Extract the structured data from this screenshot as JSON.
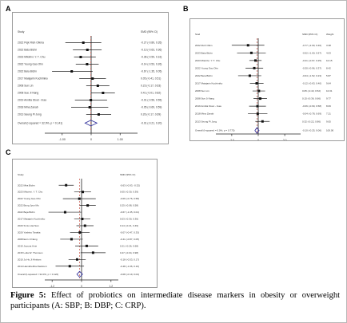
{
  "caption": {
    "label": "Figure 5:",
    "text": "Effect of probiotics on intermediate disease markers in obesity or overweight participants (A: SBP; B: DBP; C: CRP)."
  },
  "colors": {
    "diamond": "#3a3aa0",
    "square": "#111111",
    "line": "#222222",
    "frame": "#9c9c9c"
  },
  "panels": [
    {
      "label": "A",
      "header": {
        "study": "Study",
        "effect": "SMD (95% CI)"
      },
      "chart_data": {
        "type": "forest",
        "studies": [
          {
            "name": "2022 Pejk Rioh Olkma",
            "est": -0.27,
            "lo": -0.89,
            "hi": 0.35,
            "ci": "-0.27 (-0.89, 0.35)"
          },
          {
            "name": "2022 Bata Bichn",
            "est": -0.13,
            "lo": -0.63,
            "hi": 0.36,
            "ci": "-0.13 (-0.63, 0.36)"
          },
          {
            "name": "2023 Mtiotrivi. Y. T. Chu",
            "est": -0.36,
            "lo": -0.59,
            "hi": 0.16,
            "ci": "-0.36 (-0.59, 0.16)"
          },
          {
            "name": "2022 Yuung Gao Ohn",
            "est": -0.14,
            "lo": -0.53,
            "hi": 0.26,
            "ci": "-0.14 (-0.53, 0.26)"
          },
          {
            "name": "2022 Beia Bichn",
            "est": -0.67,
            "lo": -1.35,
            "hi": 0.05,
            "ci": "-0.67 (-1.35, 0.05)"
          },
          {
            "name": "2017 Maiajarin Kuchimiko",
            "est": 0.05,
            "lo": -0.41,
            "hi": 0.51,
            "ci": "0.05 (-0.41, 0.51)"
          },
          {
            "name": "2008 Sun Lin",
            "est": 0.23,
            "lo": -0.17,
            "hi": 0.63,
            "ci": "0.23 (-0.17, 0.63)"
          },
          {
            "name": "2008 Sue Ji Nang",
            "est": 0.41,
            "lo": -0.01,
            "hi": 0.82,
            "ci": "0.41 (-0.01, 0.82)"
          },
          {
            "name": "2019 Annilia Stout - Inaa",
            "est": -0.01,
            "lo": -0.56,
            "hi": 0.55,
            "ci": "-0.01 (-0.56, 0.55)"
          },
          {
            "name": "2018 Mina Zanab",
            "est": -0.05,
            "lo": -0.69,
            "hi": 0.59,
            "ci": "-0.05 (-0.69, 0.59)"
          },
          {
            "name": "2013 Seung Pi Jong",
            "est": 0.26,
            "lo": -0.17,
            "hi": 0.69,
            "ci": "0.26 (-0.17, 0.69)"
          }
        ],
        "overall": {
          "label": "Overall (I-squared = 32.9%, p = 0.141)",
          "est": -0.01,
          "lo": -0.21,
          "hi": 0.2,
          "ci": "-0.01 (-0.21, 0.20)"
        },
        "xlim": [
          -1.6,
          1.6
        ],
        "ticks": [
          {
            "v": -1.0,
            "t": "-1.00"
          },
          {
            "v": 0,
            "t": "0"
          },
          {
            "v": 1.0,
            "t": "1.00"
          }
        ]
      }
    },
    {
      "label": "B",
      "header": {
        "study": "Stud",
        "effect": "SMD (95% CI)",
        "weight": "Weight"
      },
      "chart_data": {
        "type": "forest",
        "studies": [
          {
            "name": "2022 Rioh Olkm",
            "est": -0.77,
            "lo": -2.0,
            "hi": 0.46,
            "ci": "-0.77 (-2.00, 0.46)",
            "w": "3.38"
          },
          {
            "name": "2023 Bata Bichn",
            "est": -0.52,
            "lo": -1.6,
            "hi": 0.57,
            "ci": "-0.52 (-1.60, 0.57)",
            "w": "4.03"
          },
          {
            "name": "2023 Mtiotrivi. Y. T. Chu",
            "est": -0.21,
            "lo": -0.67,
            "hi": 0.25,
            "ci": "-0.21 (-0.67, 0.25)",
            "w": "10.15"
          },
          {
            "name": "2022 Yuung Gao Ohn",
            "est": -0.3,
            "lo": -0.96,
            "hi": 0.37,
            "ci": "-0.30 (-0.96, 0.37)",
            "w": "8.42"
          },
          {
            "name": "2022 Beia Bichn",
            "est": -0.64,
            "lo": -1.52,
            "hi": 0.23,
            "ci": "-0.64 (-1.52, 0.23)",
            "w": "5.87"
          },
          {
            "name": "2017 Maiajarin Kuchimiko",
            "est": -0.12,
            "lo": -0.63,
            "hi": 0.4,
            "ci": "-0.12 (-0.63, 0.40)",
            "w": "9.64"
          },
          {
            "name": "2008 Sun Lin",
            "est": 0.05,
            "lo": -0.43,
            "hi": 0.52,
            "ci": "0.05 (-0.43, 0.52)",
            "w": "10.31"
          },
          {
            "name": "2008 Sue Ji Nang",
            "est": 0.15,
            "lo": -0.36,
            "hi": 0.66,
            "ci": "0.15 (-0.36, 0.66)",
            "w": "9.77"
          },
          {
            "name": "2019 Annilia Stout - Inaa",
            "est": -0.06,
            "lo": -0.69,
            "hi": 0.58,
            "ci": "-0.06 (-0.69, 0.58)",
            "w": "8.09"
          },
          {
            "name": "2018 Mina Zanab",
            "est": -0.04,
            "lo": -0.78,
            "hi": 0.69,
            "ci": "-0.04 (-0.78, 0.69)",
            "w": "7.21"
          },
          {
            "name": "2013 Seung Pi Jong",
            "est": 0.32,
            "lo": -0.22,
            "hi": 0.86,
            "ci": "0.32 (-0.22, 0.86)",
            "w": "9.05"
          }
        ],
        "overall": {
          "label": "Overall (I-squared = 0.0%, p = 0.775)",
          "est": -0.1,
          "lo": -0.25,
          "hi": 0.06,
          "ci": "-0.10 (-0.25, 0.06)",
          "w": "100.00"
        },
        "xlim": [
          -3.2,
          3.2
        ],
        "ticks": [
          {
            "v": -2.0,
            "t": "-2.0"
          },
          {
            "v": 0,
            "t": "0"
          },
          {
            "v": 2.0,
            "t": "2.0"
          }
        ]
      }
    },
    {
      "label": "C",
      "header": {
        "study": "Study",
        "effect": "SMD (95% CI)"
      },
      "chart_data": {
        "type": "forest",
        "studies": [
          {
            "name": "2022 Mira Bichn",
            "est": -0.63,
            "lo": -0.93,
            "hi": -0.32,
            "ci": "-0.63 (-0.93, -0.32)"
          },
          {
            "name": "2023 Mtiotrivi. Y. T. Chu",
            "est": 0.05,
            "lo": -0.3,
            "hi": 0.39,
            "ci": "0.05 (-0.30, 0.39)"
          },
          {
            "name": "2022 Yuung Gao Ohn",
            "est": -0.09,
            "lo": -0.76,
            "hi": 0.58,
            "ci": "-0.09 (-0.76, 0.58)"
          },
          {
            "name": "2022 Bung Jyun Mo",
            "est": 0.25,
            "lo": -0.08,
            "hi": 0.58,
            "ci": "0.25 (-0.08, 0.58)"
          },
          {
            "name": "2022 Beja Bichn",
            "est": -0.67,
            "lo": -1.35,
            "hi": 0.01,
            "ci": "-0.67 (-1.35, 0.01)"
          },
          {
            "name": "2017 Maiajarin Kuchimiko",
            "est": 0.03,
            "lo": -0.3,
            "hi": 0.36,
            "ci": "0.03 (-0.30, 0.36)"
          },
          {
            "name": "2020 Si Ho Hai Nan",
            "est": 0.14,
            "lo": -0.21,
            "hi": 0.49,
            "ci": "0.14 (-0.21, 0.49)"
          },
          {
            "name": "2020 Yoshino Tanaka",
            "est": -0.07,
            "lo": -0.47,
            "hi": 0.33,
            "ci": "-0.07 (-0.47, 0.33)"
          },
          {
            "name": "2008 Euin Ji Nang",
            "est": -0.41,
            "lo": -0.87,
            "hi": 0.05,
            "ci": "-0.41 (-0.87, 0.05)"
          },
          {
            "name": "2015 Juuuna Ame",
            "est": 0.21,
            "lo": -0.26,
            "hi": 0.68,
            "ci": "0.21 (-0.26, 0.68)"
          },
          {
            "name": "2015 Loila W. Thomsen",
            "est": 0.47,
            "lo": -0.04,
            "hi": 0.98,
            "ci": "0.47 (-0.04, 0.98)"
          },
          {
            "name": "2010 Ju Ho Ji Hinitam",
            "est": -0.18,
            "lo": -0.53,
            "hi": 0.17,
            "ci": "-0.18 (-0.53, 0.17)"
          },
          {
            "name": "2014 Hamidrebha Rashomi",
            "est": -0.48,
            "lo": -1.06,
            "hi": 0.1,
            "ci": "-0.48 (-1.06, 0.10)"
          }
        ],
        "overall": {
          "label": "Overall (I-squared = 32.0%, p = 0.122)",
          "est": -0.08,
          "lo": -0.19,
          "hi": 0.04,
          "ci": "-0.08 (-0.19, 0.04)"
        },
        "xlim": [
          -1.5,
          1.5
        ],
        "ticks": [
          {
            "v": -1.2,
            "t": "-1.2"
          },
          {
            "v": 0,
            "t": "0"
          },
          {
            "v": 1.2,
            "t": "1.2"
          }
        ]
      }
    }
  ]
}
